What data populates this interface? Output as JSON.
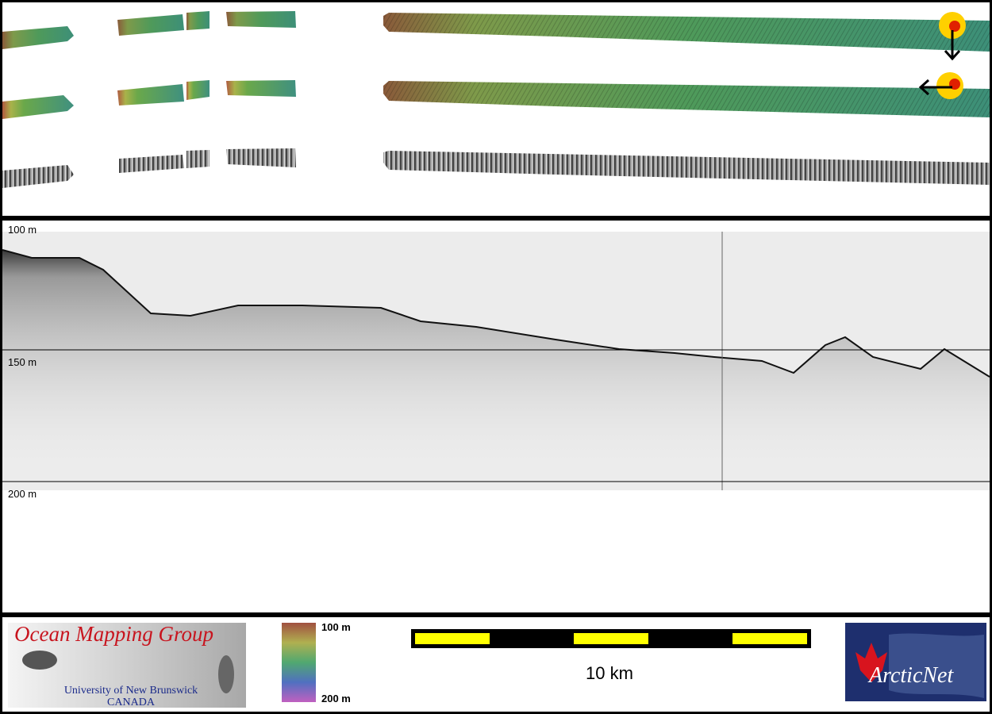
{
  "profile": {
    "depth_labels": [
      "100 m",
      "150 m",
      "200 m"
    ]
  },
  "legend": {
    "colorbar_labels": [
      "100 m",
      "200 m"
    ],
    "scale_bar": "10 km"
  },
  "logos": {
    "omg": {
      "title": "Ocean Mapping Group",
      "university": "University of New Brunswick",
      "country": "CANADA"
    },
    "arcticnet": "ArcticNet"
  }
}
